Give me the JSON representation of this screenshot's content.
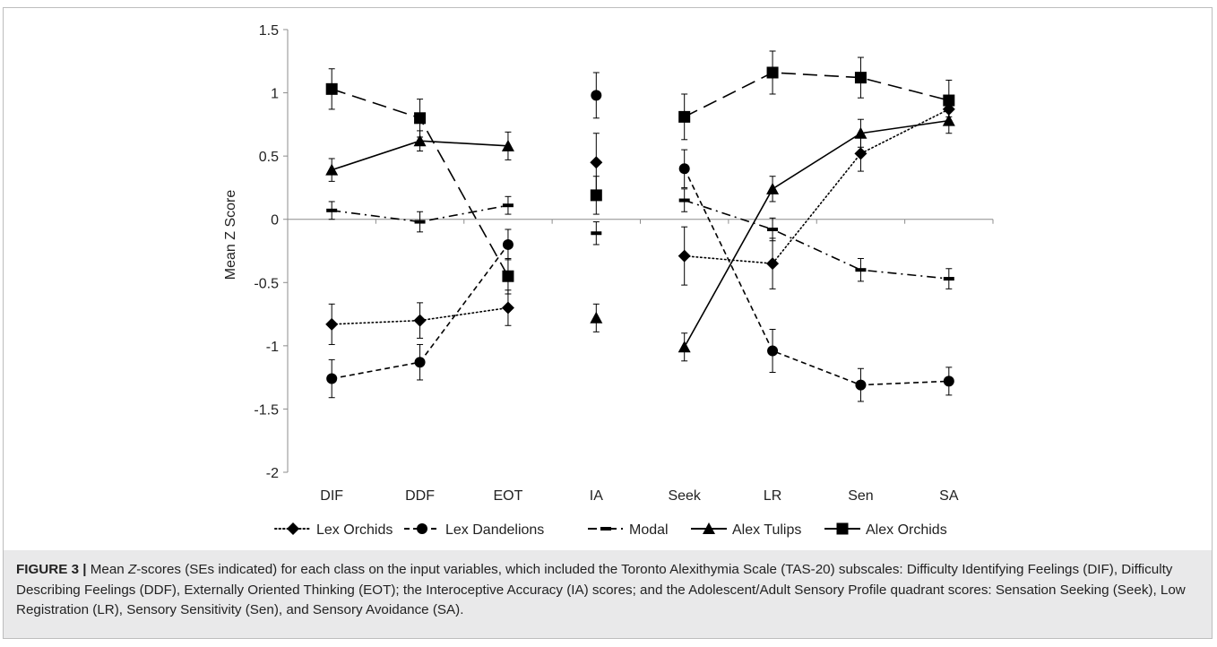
{
  "chart_data": {
    "type": "line",
    "categories": [
      "DIF",
      "DDF",
      "EOT",
      "IA",
      "Seek",
      "LR",
      "Sen",
      "SA"
    ],
    "ylabel": "Mean Z Score",
    "xlabel": "",
    "ylim": [
      -2,
      1.5
    ],
    "yticks": [
      "1.5",
      "1",
      "0.5",
      "0",
      "-0.5",
      "-1",
      "-1.5",
      "-2"
    ],
    "legend_position": "bottom",
    "grid": false,
    "series": [
      {
        "name": "Lex Orchids",
        "marker": "diamond",
        "dash": "dotted",
        "color": "#000000",
        "values": [
          -0.83,
          -0.8,
          -0.7,
          0.45,
          -0.29,
          -0.35,
          0.52,
          0.87
        ],
        "errors": [
          0.16,
          0.14,
          0.14,
          0.23,
          0.23,
          0.2,
          0.14,
          0.06
        ]
      },
      {
        "name": "Lex Dandelions",
        "marker": "circle",
        "dash": "dashed",
        "color": "#000000",
        "values": [
          -1.26,
          -1.13,
          -0.2,
          0.98,
          0.4,
          -1.04,
          -1.31,
          -1.28
        ],
        "errors": [
          0.15,
          0.14,
          0.12,
          0.18,
          0.15,
          0.17,
          0.13,
          0.11
        ]
      },
      {
        "name": "Modal",
        "marker": "dash",
        "dash": "dashdot",
        "color": "#000000",
        "values": [
          0.07,
          -0.02,
          0.11,
          -0.11,
          0.15,
          -0.08,
          -0.4,
          -0.47
        ],
        "errors": [
          0.07,
          0.08,
          0.07,
          0.09,
          0.09,
          0.09,
          0.09,
          0.08
        ]
      },
      {
        "name": "Alex Tulips",
        "marker": "triangle",
        "dash": "solid",
        "color": "#000000",
        "values": [
          0.39,
          0.62,
          0.58,
          -0.78,
          -1.01,
          0.24,
          0.68,
          0.78
        ],
        "errors": [
          0.09,
          0.08,
          0.11,
          0.11,
          0.11,
          0.1,
          0.11,
          0.1
        ]
      },
      {
        "name": "Alex Orchids",
        "marker": "square",
        "dash": "longdash",
        "color": "#000000",
        "values": [
          1.03,
          0.8,
          -0.45,
          0.19,
          0.81,
          1.16,
          1.12,
          0.94
        ],
        "errors": [
          0.16,
          0.15,
          0.14,
          0.15,
          0.18,
          0.17,
          0.16,
          0.16
        ]
      }
    ],
    "segments": [
      [
        0,
        2
      ],
      [
        4,
        7
      ]
    ]
  },
  "caption": {
    "label": "FIGURE 3 |",
    "lead": " Mean ",
    "italic": "Z",
    "text": "-scores (SEs indicated) for each class on the input variables, which included the Toronto Alexithymia Scale (TAS-20) subscales: Difficulty Identifying Feelings (DIF), Difficulty Describing Feelings (DDF), Externally Oriented Thinking (EOT); the Interoceptive Accuracy (IA) scores; and the Adolescent/Adult Sensory Profile quadrant scores: Sensation Seeking (Seek), Low Registration (LR), Sensory Sensitivity (Sen), and Sensory Avoidance (SA)."
  }
}
